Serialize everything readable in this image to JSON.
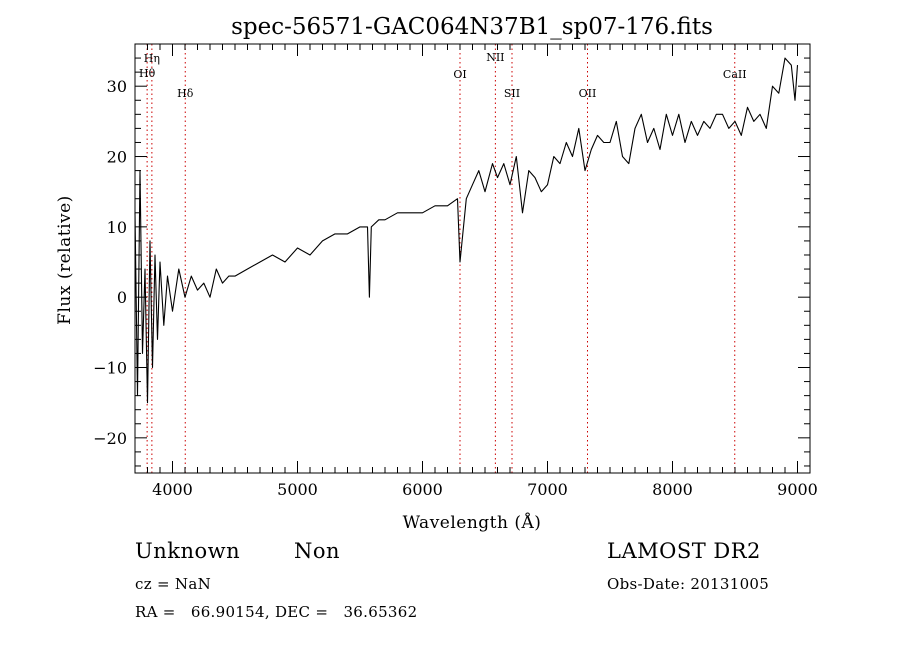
{
  "chart_data": {
    "type": "line",
    "title": "spec-56571-GAC064N37B1_sp07-176.fits",
    "xlabel": "Wavelength (Å)",
    "ylabel": "Flux (relative)",
    "xlim": [
      3700,
      9100
    ],
    "ylim": [
      -25,
      36
    ],
    "xticks": [
      4000,
      5000,
      6000,
      7000,
      8000,
      9000
    ],
    "yticks": [
      -20,
      -10,
      0,
      10,
      20,
      30
    ],
    "line_color": "#000000",
    "marker_color": "#cc0000",
    "series": [
      {
        "x": [
          3700,
          3720,
          3740,
          3760,
          3780,
          3800,
          3820,
          3840,
          3860,
          3880,
          3900,
          3930,
          3960,
          4000,
          4050,
          4100,
          4150,
          4200,
          4250,
          4300,
          4350,
          4400,
          4450,
          4500,
          4600,
          4700,
          4800,
          4900,
          5000,
          5100,
          5200,
          5300,
          5400,
          5500,
          5560,
          5575,
          5590,
          5650,
          5700,
          5800,
          5900,
          6000,
          6100,
          6200,
          6280,
          6300,
          6350,
          6400,
          6450,
          6500,
          6560,
          6600,
          6650,
          6700,
          6750,
          6800,
          6850,
          6900,
          6950,
          7000,
          7050,
          7100,
          7150,
          7200,
          7250,
          7300,
          7350,
          7400,
          7450,
          7500,
          7550,
          7600,
          7650,
          7700,
          7750,
          7800,
          7850,
          7900,
          7950,
          8000,
          8050,
          8100,
          8150,
          8200,
          8250,
          8300,
          8350,
          8400,
          8450,
          8500,
          8550,
          8600,
          8650,
          8700,
          8750,
          8800,
          8850,
          8900,
          8950,
          8980,
          9000
        ],
        "y": [
          12,
          -14,
          18,
          -8,
          4,
          -15,
          8,
          -10,
          6,
          -6,
          5,
          -4,
          3,
          -2,
          4,
          0,
          3,
          1,
          2,
          0,
          4,
          2,
          3,
          3,
          4,
          5,
          6,
          5,
          7,
          6,
          8,
          9,
          9,
          10,
          10,
          0,
          10,
          11,
          11,
          12,
          12,
          12,
          13,
          13,
          14,
          5,
          14,
          16,
          18,
          15,
          19,
          17,
          19,
          16,
          20,
          12,
          18,
          17,
          15,
          16,
          20,
          19,
          22,
          20,
          24,
          18,
          21,
          23,
          22,
          22,
          25,
          20,
          19,
          24,
          26,
          22,
          24,
          21,
          26,
          23,
          26,
          22,
          25,
          23,
          25,
          24,
          26,
          26,
          24,
          25,
          23,
          27,
          25,
          26,
          24,
          30,
          29,
          34,
          33,
          28,
          33
        ]
      }
    ],
    "lines": [
      {
        "label": "Hη",
        "x": 3835
      },
      {
        "label": "Hθ",
        "x": 3797
      },
      {
        "label": "Hδ",
        "x": 4102
      },
      {
        "label": "OI",
        "x": 6300
      },
      {
        "label": "NII",
        "x": 6583
      },
      {
        "label": "SII",
        "x": 6716
      },
      {
        "label": "OII",
        "x": 7320
      },
      {
        "label": "CaII",
        "x": 8498
      }
    ]
  },
  "info": {
    "class": "Unknown",
    "subclass": "Non",
    "cz": "cz = NaN",
    "radec": "RA =   66.90154, DEC =   36.65362",
    "survey": "LAMOST DR2",
    "obsdate": "Obs-Date: 20131005"
  }
}
